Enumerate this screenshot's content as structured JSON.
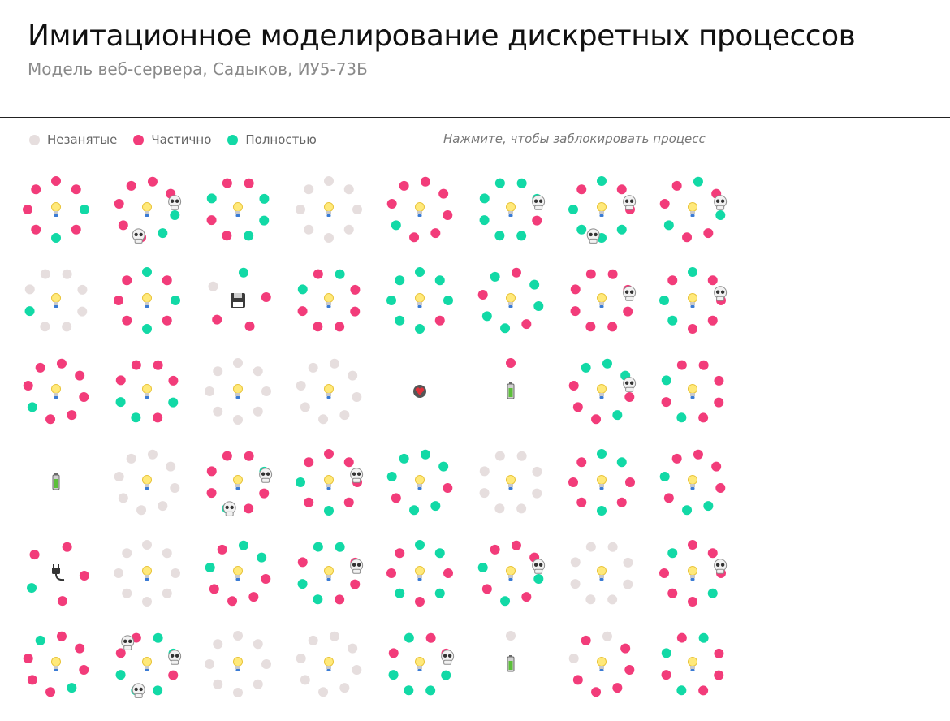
{
  "header": {
    "title": "Имитационное моделирование дискретных процессов",
    "subtitle": "Модель веб-сервера, Садыков, ИУ5-73Б"
  },
  "legend": {
    "items": [
      {
        "label": "Незанятые",
        "color": "#e6dede"
      },
      {
        "label": "Частично",
        "color": "#f23c7a"
      },
      {
        "label": "Полностью",
        "color": "#12d9a6"
      }
    ],
    "hint": "Нажмите, чтобы заблокировать процесс"
  },
  "colors": {
    "empty": "#e6dede",
    "partial": "#f23c7a",
    "full": "#12d9a6"
  },
  "icons": {
    "bulb": "bulb-icon",
    "skull": "skull-icon",
    "floppy": "floppy-disk-icon",
    "battery": "battery-icon",
    "plug": "plug-icon",
    "heart": "heart-icon"
  },
  "chart_data": {
    "type": "scatter",
    "rows": 6,
    "columns": 8,
    "cells": [
      {
        "center": "bulb",
        "dots": "ppfpfppp",
        "skulls": 0
      },
      {
        "center": "bulb",
        "dots": "ppffpppp",
        "skulls": 2
      },
      {
        "center": "bulb",
        "dots": "pfffppfp",
        "skulls": 0
      },
      {
        "center": "bulb",
        "dots": "eeeeeeee",
        "skulls": 0
      },
      {
        "center": "bulb",
        "dots": "pppppfpp",
        "skulls": 0
      },
      {
        "center": "bulb",
        "dots": "ffpfffff",
        "skulls": 1
      },
      {
        "center": "bulb",
        "dots": "fppffffp",
        "skulls": 2
      },
      {
        "center": "bulb",
        "dots": "fpfppfpp",
        "skulls": 1
      },
      {
        "center": "bulb",
        "dots": "eeeeefee",
        "skulls": 0
      },
      {
        "center": "bulb",
        "dots": "fpfpfppp",
        "skulls": 0
      },
      {
        "center": "floppy",
        "dots": "fpppe",
        "skulls": 0
      },
      {
        "center": "bulb",
        "dots": "fpppppfp",
        "skulls": 0
      },
      {
        "center": "bulb",
        "dots": "fffpffff",
        "skulls": 0
      },
      {
        "center": "bulb",
        "dots": "pffpffpf",
        "skulls": 0
      },
      {
        "center": "bulb",
        "dots": "pppppppp",
        "skulls": 1
      },
      {
        "center": "bulb",
        "dots": "fppppffp",
        "skulls": 1
      },
      {
        "center": "bulb",
        "dots": "pppppfpp",
        "skulls": 0
      },
      {
        "center": "bulb",
        "dots": "ppfpffpp",
        "skulls": 0
      },
      {
        "center": "bulb",
        "dots": "eeeeeeee",
        "skulls": 0
      },
      {
        "center": "bulb",
        "dots": "eeeeeeee",
        "skulls": 0
      },
      {
        "center": "heart",
        "dots": "",
        "skulls": 0
      },
      {
        "center": "battery",
        "dots": "p",
        "skulls": 0
      },
      {
        "center": "bulb",
        "dots": "ffpfpppf",
        "skulls": 1
      },
      {
        "center": "bulb",
        "dots": "ppppfpfp",
        "skulls": 0
      },
      {
        "center": "battery",
        "dots": "",
        "skulls": 0
      },
      {
        "center": "bulb",
        "dots": "eeeeeeee",
        "skulls": 0
      },
      {
        "center": "bulb",
        "dots": "pfppfppp",
        "skulls": 2
      },
      {
        "center": "bulb",
        "dots": "ppppfpfp",
        "skulls": 1
      },
      {
        "center": "bulb",
        "dots": "ffpffpff",
        "skulls": 0
      },
      {
        "center": "bulb",
        "dots": "eeeeeeee",
        "skulls": 0
      },
      {
        "center": "bulb",
        "dots": "ffppfppp",
        "skulls": 0
      },
      {
        "center": "bulb",
        "dots": "pppffpfp",
        "skulls": 0
      },
      {
        "center": "plug",
        "dots": "pppfp",
        "skulls": 0
      },
      {
        "center": "bulb",
        "dots": "eeeeeeee",
        "skulls": 0
      },
      {
        "center": "bulb",
        "dots": "ffppppfp",
        "skulls": 0
      },
      {
        "center": "bulb",
        "dots": "fpppffpf",
        "skulls": 1
      },
      {
        "center": "bulb",
        "dots": "ffpfpfpp",
        "skulls": 0
      },
      {
        "center": "bulb",
        "dots": "ppfpfpfp",
        "skulls": 1
      },
      {
        "center": "bulb",
        "dots": "eeeeeeee",
        "skulls": 0
      },
      {
        "center": "bulb",
        "dots": "pppfpppf",
        "skulls": 1
      },
      {
        "center": "bulb",
        "dots": "pppfpppf",
        "skulls": 0
      },
      {
        "center": "bulb",
        "dots": "ffpfffpp",
        "skulls": 3
      },
      {
        "center": "bulb",
        "dots": "eeeeeeee",
        "skulls": 0
      },
      {
        "center": "bulb",
        "dots": "eeeeeeee",
        "skulls": 0
      },
      {
        "center": "bulb",
        "dots": "ppffffpf",
        "skulls": 1
      },
      {
        "center": "battery",
        "dots": "e",
        "skulls": 0
      },
      {
        "center": "bulb",
        "dots": "epppppep",
        "skulls": 0
      },
      {
        "center": "bulb",
        "dots": "fpppfpfp",
        "skulls": 0
      }
    ]
  }
}
